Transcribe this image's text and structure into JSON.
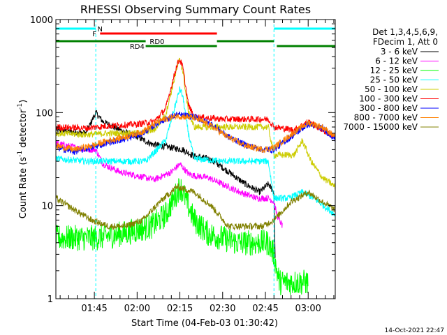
{
  "chart_data": {
    "type": "line",
    "title": "RHESSI Observing Summary Count Rates",
    "xlabel": "Start Time (04-Feb-03 01:30:42)",
    "ylabel_main": "Count Rate (s",
    "ylabel_exp1": "-1",
    "ylabel_mid": " detector",
    "ylabel_exp2": "-1",
    "ylabel_end": ")",
    "y_scale": "log",
    "ylim": [
      1,
      1000
    ],
    "xlim_minutes": [
      1.5,
      99.5
    ],
    "y_ticks": [
      {
        "value": 1000,
        "label": "1000"
      },
      {
        "value": 100,
        "label": "100"
      },
      {
        "value": 10,
        "label": "10"
      },
      {
        "value": 1,
        "label": "1"
      }
    ],
    "x_ticks": [
      {
        "value": 15,
        "label": "01:45"
      },
      {
        "value": 30,
        "label": "02:00"
      },
      {
        "value": 45,
        "label": "02:15"
      },
      {
        "value": 60,
        "label": "02:30"
      },
      {
        "value": 75,
        "label": "02:45"
      },
      {
        "value": 90,
        "label": "03:00"
      }
    ],
    "legend_header": [
      "Det 1,3,4,5,6,9,",
      "FDecim 1, Att 0"
    ],
    "legend_position": "right",
    "series": [
      {
        "name": "3 - 6 keV",
        "color": "#000000",
        "kp": [
          [
            1.5,
            65
          ],
          [
            12,
            60
          ],
          [
            15.5,
            100
          ],
          [
            18,
            80
          ],
          [
            24,
            65
          ],
          [
            30,
            55
          ],
          [
            35,
            46
          ],
          [
            42,
            42
          ],
          [
            46,
            40
          ],
          [
            50,
            34
          ],
          [
            55,
            32
          ],
          [
            59,
            27
          ],
          [
            63,
            22
          ],
          [
            68,
            17
          ],
          [
            73,
            14
          ],
          [
            76,
            17
          ],
          [
            78,
            14
          ],
          [
            78.5,
            2
          ]
        ]
      },
      {
        "name": "6 - 12 keV",
        "color": "#ff00ff",
        "kp": [
          [
            1.5,
            47
          ],
          [
            12,
            40
          ],
          [
            15.5,
            40
          ],
          [
            18,
            28
          ],
          [
            24,
            23
          ],
          [
            30,
            21
          ],
          [
            36,
            19
          ],
          [
            42,
            23
          ],
          [
            45,
            28
          ],
          [
            48,
            22
          ],
          [
            50,
            21
          ],
          [
            55,
            20
          ],
          [
            60,
            17
          ],
          [
            66,
            14
          ],
          [
            72,
            12
          ],
          [
            76,
            12
          ],
          [
            78,
            11
          ],
          [
            79,
            8
          ],
          [
            81,
            6
          ]
        ]
      },
      {
        "name": "12 - 25 keV",
        "color": "#00ff00",
        "kp": [
          [
            1.5,
            4.5
          ],
          [
            15.5,
            4.5
          ],
          [
            25,
            5
          ],
          [
            35,
            6
          ],
          [
            40,
            8
          ],
          [
            43,
            12
          ],
          [
            45,
            16
          ],
          [
            46,
            14
          ],
          [
            50,
            7
          ],
          [
            55,
            5
          ],
          [
            65,
            4
          ],
          [
            76,
            4
          ],
          [
            78,
            3
          ],
          [
            79,
            2
          ],
          [
            80,
            1.5
          ],
          [
            90,
            1.5
          ]
        ]
      },
      {
        "name": "25 - 50 keV",
        "color": "#00ffff",
        "kp": [
          [
            1.5,
            32
          ],
          [
            12,
            30
          ],
          [
            15.5,
            30
          ],
          [
            25,
            30
          ],
          [
            33,
            30
          ],
          [
            40,
            50
          ],
          [
            44,
            140
          ],
          [
            45,
            180
          ],
          [
            46,
            150
          ],
          [
            48,
            60
          ],
          [
            50,
            32
          ],
          [
            60,
            30
          ],
          [
            76,
            30
          ],
          [
            78,
            12
          ],
          [
            83,
            12
          ],
          [
            88,
            14
          ],
          [
            92,
            12
          ],
          [
            99.5,
            8
          ]
        ]
      },
      {
        "name": "50 - 100 keV",
        "color": "#cccc00",
        "kp": [
          [
            1.5,
            60
          ],
          [
            12,
            58
          ],
          [
            20,
            60
          ],
          [
            30,
            60
          ],
          [
            36,
            65
          ],
          [
            40,
            95
          ],
          [
            44,
            300
          ],
          [
            45,
            380
          ],
          [
            46,
            280
          ],
          [
            48,
            100
          ],
          [
            50,
            70
          ],
          [
            60,
            70
          ],
          [
            76,
            70
          ],
          [
            78,
            35
          ],
          [
            85,
            35
          ],
          [
            88,
            50
          ],
          [
            91,
            30
          ],
          [
            95,
            20
          ],
          [
            99.5,
            16
          ]
        ]
      },
      {
        "name": "100 - 300 keV",
        "color": "#ff0000",
        "kp": [
          [
            1.5,
            70
          ],
          [
            12,
            68
          ],
          [
            20,
            72
          ],
          [
            30,
            75
          ],
          [
            36,
            80
          ],
          [
            40,
            110
          ],
          [
            44,
            330
          ],
          [
            45,
            370
          ],
          [
            46,
            310
          ],
          [
            48,
            120
          ],
          [
            50,
            90
          ],
          [
            60,
            85
          ],
          [
            76,
            85
          ],
          [
            78,
            70
          ],
          [
            85,
            65
          ],
          [
            90,
            80
          ],
          [
            95,
            65
          ],
          [
            99.5,
            55
          ]
        ]
      },
      {
        "name": "300 - 800 keV",
        "color": "#0000ff",
        "kp": [
          [
            1.5,
            42
          ],
          [
            8,
            38
          ],
          [
            14,
            42
          ],
          [
            20,
            48
          ],
          [
            26,
            52
          ],
          [
            32,
            60
          ],
          [
            38,
            80
          ],
          [
            44,
            95
          ],
          [
            50,
            90
          ],
          [
            56,
            75
          ],
          [
            62,
            55
          ],
          [
            68,
            45
          ],
          [
            74,
            40
          ],
          [
            78,
            40
          ],
          [
            84,
            55
          ],
          [
            90,
            75
          ],
          [
            95,
            68
          ],
          [
            99.5,
            52
          ]
        ]
      },
      {
        "name": "800 - 7000 keV",
        "color": "#ff8000",
        "kp": [
          [
            1.5,
            44
          ],
          [
            8,
            40
          ],
          [
            14,
            44
          ],
          [
            20,
            50
          ],
          [
            26,
            55
          ],
          [
            32,
            63
          ],
          [
            38,
            82
          ],
          [
            44,
            92
          ],
          [
            50,
            88
          ],
          [
            56,
            72
          ],
          [
            62,
            54
          ],
          [
            68,
            44
          ],
          [
            74,
            40
          ],
          [
            78,
            42
          ],
          [
            84,
            58
          ],
          [
            90,
            78
          ],
          [
            95,
            70
          ],
          [
            99.5,
            55
          ]
        ]
      },
      {
        "name": "7000 - 15000 keV",
        "color": "#808000",
        "kp": [
          [
            1.5,
            12
          ],
          [
            8,
            9
          ],
          [
            14,
            7
          ],
          [
            20,
            6
          ],
          [
            26,
            6
          ],
          [
            32,
            7
          ],
          [
            38,
            11
          ],
          [
            44,
            16
          ],
          [
            50,
            14
          ],
          [
            56,
            10
          ],
          [
            62,
            6
          ],
          [
            68,
            6
          ],
          [
            74,
            6
          ],
          [
            78,
            7
          ],
          [
            84,
            11
          ],
          [
            90,
            14
          ],
          [
            95,
            11
          ],
          [
            99.5,
            9
          ]
        ]
      }
    ],
    "flags": [
      {
        "label": "N",
        "color": "#00ffff",
        "x1": 1.5,
        "x2": 15.5,
        "level": 1,
        "lx": 17
      },
      {
        "label": "N",
        "color": "#00ffff",
        "x1": 78,
        "x2": 99.5,
        "level": 1
      },
      {
        "label": "F",
        "color": "#ff0000",
        "x1": 17,
        "x2": 58,
        "level": 2,
        "lx": 15
      },
      {
        "label": "RD0",
        "color": "#008000",
        "x1": 1.5,
        "x2": 33,
        "level": 3,
        "lx": 37
      },
      {
        "label": "RD0",
        "color": "#008000",
        "x1": 58,
        "x2": 78,
        "level": 3
      },
      {
        "label": "RD4",
        "color": "#008000",
        "x1": 33,
        "x2": 58,
        "level": 4,
        "lx": 30
      },
      {
        "label": "RD4",
        "color": "#008000",
        "x1": 79,
        "x2": 99.5,
        "level": 4
      }
    ],
    "vlines": [
      15.5,
      78,
      99.5
    ]
  },
  "timestamp": "14-Oct-2021 22:47"
}
